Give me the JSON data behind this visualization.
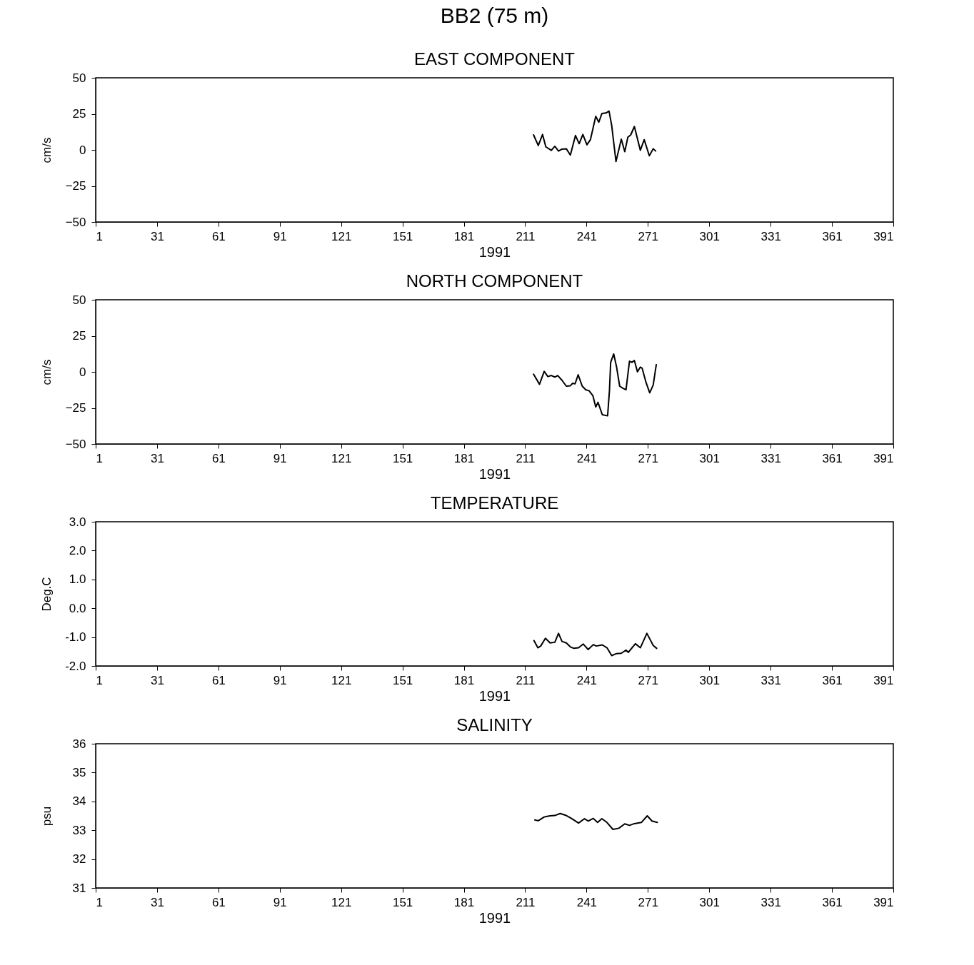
{
  "chart_data": [
    {
      "type": "line",
      "title": "BB2 (75 m)",
      "subtitle": "EAST COMPONENT",
      "xlabel": "1991",
      "ylabel": "cm/s",
      "color": "#000000",
      "grid": false,
      "xlim": [
        1,
        391
      ],
      "xticks": [
        1,
        31,
        61,
        91,
        121,
        151,
        181,
        211,
        241,
        271,
        301,
        331,
        361,
        391
      ],
      "ylim": [
        -50,
        50
      ],
      "yticks": [
        -50,
        -25,
        0,
        25,
        50
      ],
      "x": [
        215.1,
        217.4,
        219.5,
        221.1,
        223.8,
        225.5,
        227.3,
        229.0,
        231.1,
        233.1,
        235.6,
        237.4,
        239.2,
        241.2,
        242.9,
        245.5,
        247.0,
        248.5,
        250.5,
        252.0,
        253.3,
        255.4,
        258.0,
        259.7,
        261.2,
        262.6,
        264.4,
        267.3,
        269.2,
        271.7,
        273.6,
        274.8
      ],
      "values": [
        10.4,
        3.0,
        10.7,
        2.1,
        -0.3,
        2.5,
        -0.8,
        0.5,
        0.8,
        -3.6,
        10.0,
        4.3,
        10.7,
        3.5,
        7.1,
        23.3,
        19.2,
        25.2,
        25.6,
        26.9,
        17.0,
        -8.1,
        7.4,
        -1.2,
        8.8,
        10.4,
        16.2,
        -0.3,
        7.1,
        -4.1,
        0.8,
        -0.8
      ]
    },
    {
      "type": "line",
      "title": "NORTH COMPONENT",
      "xlabel": "1991",
      "ylabel": "cm/s",
      "color": "#000000",
      "grid": false,
      "xlim": [
        1,
        391
      ],
      "xticks": [
        1,
        31,
        61,
        91,
        121,
        151,
        181,
        211,
        241,
        271,
        301,
        331,
        361,
        391
      ],
      "ylim": [
        -50,
        50
      ],
      "yticks": [
        -50,
        -25,
        0,
        25,
        50
      ],
      "x": [
        215.1,
        218.0,
        220.3,
        222.1,
        223.8,
        225.5,
        226.9,
        229.0,
        231.1,
        233.1,
        234.2,
        235.4,
        236.9,
        238.9,
        240.6,
        242.3,
        244.1,
        245.5,
        246.6,
        248.7,
        251.3,
        252.2,
        252.8,
        254.3,
        255.7,
        257.2,
        258.6,
        260.3,
        262.0,
        263.2,
        264.4,
        265.9,
        267.3,
        268.2,
        270.1,
        271.9,
        273.6,
        275.1
      ],
      "values": [
        -1.6,
        -8.6,
        0.3,
        -3.3,
        -2.5,
        -3.6,
        -2.5,
        -5.8,
        -9.9,
        -9.6,
        -7.9,
        -8.3,
        -2.0,
        -9.9,
        -12.4,
        -13.2,
        -16.5,
        -24.4,
        -21.1,
        -29.7,
        -30.5,
        -13.2,
        6.6,
        12.4,
        3.3,
        -9.9,
        -11.2,
        -12.4,
        7.4,
        6.6,
        7.9,
        0,
        3.3,
        2.5,
        -7.4,
        -14.5,
        -9.1,
        5.0
      ]
    },
    {
      "type": "line",
      "title": "TEMPERATURE",
      "xlabel": "1991",
      "ylabel": "Deg.C",
      "color": "#000000",
      "grid": false,
      "xlim": [
        1,
        391
      ],
      "xticks": [
        1,
        31,
        61,
        91,
        121,
        151,
        181,
        211,
        241,
        271,
        301,
        331,
        361,
        391
      ],
      "ylim": [
        -2,
        3
      ],
      "yticks": [
        {
          "value": -2,
          "label": "-2.0"
        },
        {
          "value": -1,
          "label": "-1.0"
        },
        {
          "value": 0,
          "label": "0.0"
        },
        {
          "value": 1,
          "label": "1.0"
        },
        {
          "value": 2,
          "label": "2.0"
        },
        {
          "value": 3,
          "label": "3.0"
        }
      ],
      "x": [
        215.3,
        217.2,
        218.6,
        220.9,
        223.2,
        225.5,
        227.3,
        229.0,
        231.1,
        233.1,
        234.8,
        237.1,
        239.4,
        241.8,
        244.3,
        245.8,
        248.7,
        251.0,
        253.3,
        255.7,
        258.0,
        260.3,
        261.4,
        264.9,
        267.3,
        270.5,
        273.6,
        275.3
      ],
      "values": [
        -1.12,
        -1.37,
        -1.31,
        -1.04,
        -1.2,
        -1.18,
        -0.87,
        -1.15,
        -1.2,
        -1.34,
        -1.39,
        -1.37,
        -1.24,
        -1.43,
        -1.26,
        -1.31,
        -1.27,
        -1.37,
        -1.64,
        -1.57,
        -1.56,
        -1.45,
        -1.53,
        -1.23,
        -1.37,
        -0.87,
        -1.29,
        -1.39
      ]
    },
    {
      "type": "line",
      "title": "SALINITY",
      "xlabel": "1991",
      "ylabel": "psu",
      "color": "#000000",
      "grid": false,
      "xlim": [
        1,
        391
      ],
      "xticks": [
        1,
        31,
        61,
        91,
        121,
        151,
        181,
        211,
        241,
        271,
        301,
        331,
        361,
        391
      ],
      "ylim": [
        31,
        36
      ],
      "yticks": [
        31,
        32,
        33,
        34,
        35,
        36
      ],
      "x": [
        215.7,
        217.4,
        220.3,
        223.2,
        225.5,
        228.1,
        230.8,
        233.6,
        237.1,
        240.0,
        241.8,
        244.3,
        246.4,
        248.5,
        251.0,
        253.9,
        256.8,
        259.7,
        262.0,
        264.4,
        267.8,
        270.7,
        273.0,
        275.6
      ],
      "values": [
        33.36,
        33.33,
        33.46,
        33.5,
        33.51,
        33.58,
        33.52,
        33.41,
        33.25,
        33.4,
        33.32,
        33.41,
        33.27,
        33.4,
        33.27,
        33.03,
        33.07,
        33.22,
        33.17,
        33.23,
        33.27,
        33.5,
        33.32,
        33.27
      ]
    }
  ]
}
